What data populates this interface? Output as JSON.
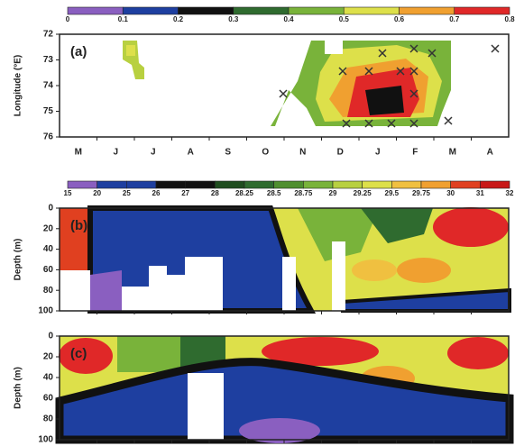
{
  "chart_data": [
    {
      "type": "contour",
      "panel_label": "(a)",
      "y_label": "Longitude (°E)",
      "colorbar": {
        "ticks": [
          0,
          0.1,
          0.2,
          0.3,
          0.4,
          0.5,
          0.6,
          0.7,
          0.8
        ],
        "colors": [
          "#8a5fc0",
          "#1e3fa0",
          "#111111",
          "#2f6b2f",
          "#79b33a",
          "#dde04a",
          "#f0a030",
          "#e02828"
        ]
      },
      "ylim": [
        72,
        76
      ],
      "yticks": [
        72,
        73,
        74,
        75,
        76
      ],
      "inverted": true,
      "categories": [
        "M",
        "J",
        "J",
        "A",
        "S",
        "O",
        "N",
        "D",
        "J",
        "F",
        "M",
        "A"
      ]
    },
    {
      "type": "contour",
      "panel_label": "(b)",
      "y_label": "Depth (m)",
      "colorbar": {
        "ticks": [
          15,
          20,
          25,
          26,
          27,
          28,
          28.25,
          28.5,
          28.75,
          29,
          29.25,
          29.5,
          29.75,
          30,
          31,
          32
        ],
        "colors": [
          "#8a5fc0",
          "#1e3fa0",
          "#1e3fa0",
          "#111111",
          "#111111",
          "#1f4d1f",
          "#2f6b2f",
          "#4f8f2f",
          "#79b33a",
          "#b8d040",
          "#dde04a",
          "#f0c040",
          "#f0a030",
          "#e04020",
          "#c81818"
        ]
      },
      "ylim": [
        0,
        100
      ],
      "yticks": [
        0,
        20,
        40,
        60,
        80,
        100
      ],
      "inverted": true
    },
    {
      "type": "contour",
      "panel_label": "(c)",
      "y_label": "Depth (m)",
      "ylim": [
        0,
        100
      ],
      "yticks": [
        0,
        20,
        40,
        60,
        80,
        100
      ],
      "inverted": true
    }
  ]
}
